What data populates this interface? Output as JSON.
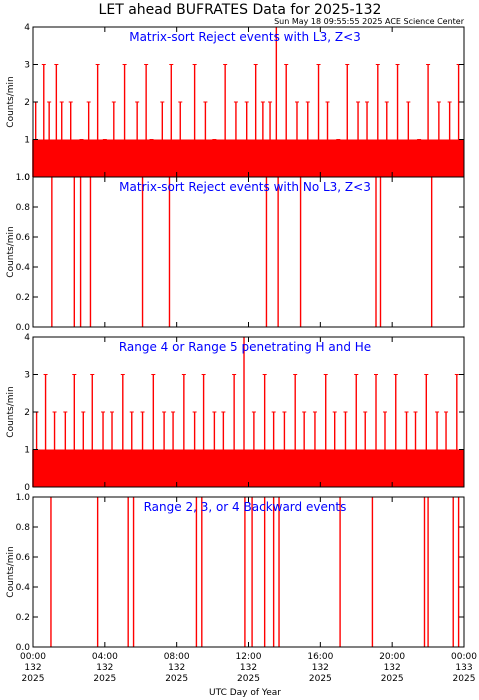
{
  "title": "LET ahead BUFRATES Data for 2025-132",
  "timestamp": "Sun May 18 09:55:55 2025 ACE Science Center",
  "xlabel": "UTC Day of Year",
  "colors": {
    "data": "#ff0000",
    "annotation": "#0000ff",
    "axes": "#000000"
  },
  "chart_data": [
    {
      "type": "bar",
      "panel": "matrix-sort-reject-l3",
      "annotation": "Matrix-sort Reject events with L3, Z<3",
      "ylabel": "Counts/min",
      "ylim": [
        0,
        4
      ],
      "yticks": [
        "0",
        "1",
        "2",
        "3",
        "4"
      ],
      "x_hours": [
        0.15,
        0.6,
        0.9,
        1.3,
        1.6,
        2.1,
        2.7,
        3.1,
        3.6,
        4.0,
        4.5,
        5.1,
        5.8,
        6.3,
        6.6,
        7.2,
        7.7,
        8.2,
        9.0,
        9.6,
        10.1,
        10.7,
        11.3,
        11.9,
        12.4,
        12.8,
        13.2,
        13.55,
        14.1,
        14.7,
        15.3,
        15.9,
        16.4,
        17.0,
        17.5,
        18.1,
        18.6,
        19.2,
        19.7,
        20.3,
        20.9,
        21.5,
        22.0,
        22.6,
        23.2,
        23.7
      ],
      "values": [
        2,
        3,
        2,
        3,
        2,
        2,
        1,
        2,
        3,
        1,
        2,
        3,
        2,
        3,
        1,
        2,
        3,
        2,
        3,
        2,
        1,
        3,
        2,
        2,
        3,
        2,
        2,
        4,
        3,
        2,
        2,
        3,
        2,
        1,
        3,
        2,
        2,
        3,
        2,
        3,
        2,
        1,
        3,
        2,
        2,
        3
      ]
    },
    {
      "type": "bar",
      "panel": "matrix-sort-reject-no-l3",
      "annotation": "Matrix-sort Reject events with No L3, Z<3",
      "ylabel": "Counts/min",
      "ylim": [
        0,
        1.0
      ],
      "yticks": [
        "0.0",
        "0.2",
        "0.4",
        "0.6",
        "0.8",
        "1.0"
      ],
      "x_hours": [
        1.05,
        2.3,
        2.65,
        3.2,
        6.1,
        7.6,
        13.0,
        13.65,
        14.9,
        19.1,
        19.35,
        22.2
      ],
      "values": [
        1,
        1,
        1,
        1,
        1,
        1,
        1,
        1,
        1,
        1,
        1,
        1
      ]
    },
    {
      "type": "bar",
      "panel": "range-4-5-penetrating",
      "annotation": "Range 4 or Range 5 penetrating H and He",
      "ylabel": "Counts/min",
      "ylim": [
        0,
        4
      ],
      "yticks": [
        "0",
        "1",
        "2",
        "3",
        "4"
      ],
      "x_hours": [
        0.2,
        0.7,
        1.2,
        1.8,
        2.3,
        2.8,
        3.3,
        3.9,
        4.4,
        5.0,
        5.5,
        6.1,
        6.7,
        7.3,
        7.8,
        8.4,
        9.0,
        9.5,
        10.1,
        10.6,
        11.2,
        11.75,
        12.3,
        12.9,
        13.4,
        14.0,
        14.6,
        15.1,
        15.7,
        16.3,
        16.8,
        17.4,
        18.0,
        18.5,
        19.1,
        19.6,
        20.2,
        20.8,
        21.3,
        21.9,
        22.5,
        23.0,
        23.6
      ],
      "values": [
        2,
        3,
        2,
        2,
        3,
        2,
        3,
        2,
        2,
        3,
        2,
        2,
        3,
        2,
        2,
        3,
        2,
        3,
        2,
        2,
        3,
        4,
        2,
        3,
        2,
        2,
        3,
        2,
        2,
        3,
        2,
        2,
        3,
        2,
        3,
        2,
        3,
        2,
        2,
        3,
        2,
        2,
        3
      ]
    },
    {
      "type": "bar",
      "panel": "range-2-3-4-backward",
      "annotation": "Range 2, 3, or 4 Backward events",
      "ylabel": "Counts/min",
      "ylim": [
        0,
        1.0
      ],
      "yticks": [
        "0.0",
        "0.2",
        "0.4",
        "0.6",
        "0.8",
        "1.0"
      ],
      "x_hours": [
        1.0,
        3.6,
        5.3,
        5.6,
        9.1,
        9.4,
        11.8,
        12.2,
        12.9,
        13.4,
        13.7,
        17.1,
        18.9,
        21.8,
        22.0,
        23.4,
        23.7
      ],
      "values": [
        1,
        1,
        1,
        1,
        1,
        1,
        1,
        1,
        1,
        1,
        1,
        1,
        1,
        1,
        1,
        1,
        1
      ]
    }
  ],
  "xticks": [
    {
      "time": "00:00",
      "doy": "132",
      "year": "2025"
    },
    {
      "time": "04:00",
      "doy": "132",
      "year": "2025"
    },
    {
      "time": "08:00",
      "doy": "132",
      "year": "2025"
    },
    {
      "time": "12:00",
      "doy": "132",
      "year": "2025"
    },
    {
      "time": "16:00",
      "doy": "132",
      "year": "2025"
    },
    {
      "time": "20:00",
      "doy": "132",
      "year": "2025"
    },
    {
      "time": "00:00",
      "doy": "133",
      "year": "2025"
    }
  ],
  "xlim_hours": [
    0,
    24
  ]
}
